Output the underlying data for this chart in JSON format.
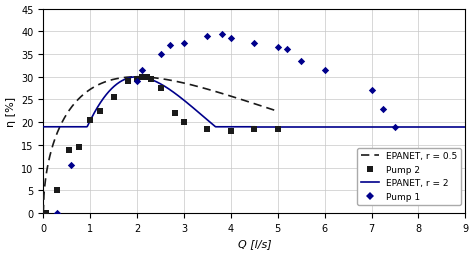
{
  "title": "",
  "xlabel": "Q [l/s]",
  "ylabel": "η [%]",
  "xlim": [
    0,
    9
  ],
  "ylim": [
    0,
    45
  ],
  "xticks": [
    0,
    1,
    2,
    3,
    4,
    5,
    6,
    7,
    8,
    9
  ],
  "yticks": [
    0,
    5,
    10,
    15,
    20,
    25,
    30,
    35,
    40,
    45
  ],
  "pump2_Q": [
    0.05,
    0.3,
    0.55,
    0.75,
    1.0,
    1.2,
    1.5,
    1.8,
    2.0,
    2.1,
    2.2,
    2.3,
    2.5,
    2.8,
    3.0,
    3.5,
    4.0,
    4.5,
    5.0
  ],
  "pump2_eta": [
    0.0,
    5.0,
    14.0,
    14.5,
    20.5,
    22.5,
    25.5,
    29.0,
    29.5,
    30.0,
    30.0,
    29.5,
    27.5,
    22.0,
    20.0,
    18.5,
    18.0,
    18.5,
    18.5
  ],
  "pump1_Q": [
    0.3,
    0.6,
    2.0,
    2.1,
    2.5,
    2.7,
    3.0,
    3.5,
    3.8,
    4.0,
    4.5,
    5.0,
    5.2,
    5.5,
    6.0,
    7.0,
    7.25,
    7.5
  ],
  "pump1_eta": [
    0.0,
    10.5,
    29.0,
    31.5,
    35.0,
    37.0,
    37.5,
    39.0,
    39.5,
    38.5,
    37.5,
    36.5,
    36.0,
    33.5,
    31.5,
    27.0,
    23.0,
    19.0
  ],
  "bg_color": "#ffffff",
  "grid_color": "#c8c8c8",
  "pump2_color": "#1a1a1a",
  "pump1_color": "#00008b",
  "epanet_r05_color": "#1a1a1a",
  "epanet_r2_color": "#00008b",
  "legend_fontsize": 6.5,
  "tick_fontsize": 7,
  "label_fontsize": 8,
  "epanet_r2_flat_y": 19.0,
  "epanet_r2_flat_x_start": 4.5,
  "epanet_r2_flat_x_end": 9.0
}
